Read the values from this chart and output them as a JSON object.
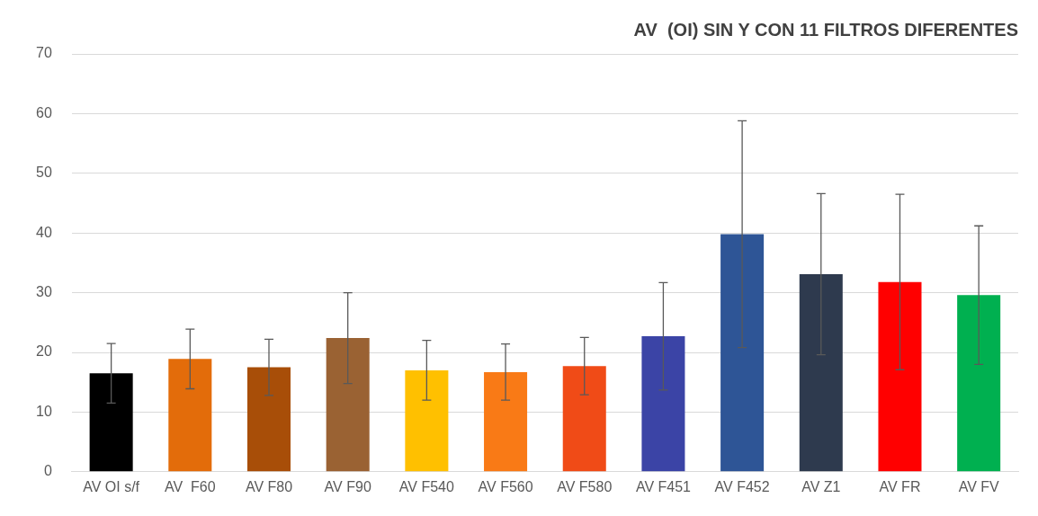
{
  "chart_data": {
    "type": "bar",
    "title": "AV  (OI) SIN Y CON 11 FILTROS DIFERENTES",
    "categories": [
      "AV OI s/f",
      "AV  F60",
      "AV F80",
      "AV F90",
      "AV F540",
      "AV F560",
      "AV F580",
      "AV F451",
      "AV F452",
      "AV Z1",
      "AV FR",
      "AV FV"
    ],
    "values": [
      16.5,
      18.9,
      17.5,
      22.4,
      17.0,
      16.7,
      17.7,
      22.7,
      39.8,
      33.1,
      31.8,
      29.6
    ],
    "colors": [
      "#000000",
      "#e36c0a",
      "#a84e08",
      "#9a6233",
      "#ffc000",
      "#f97a16",
      "#f04b17",
      "#3b44a6",
      "#2e5596",
      "#2e3a4e",
      "#ff0000",
      "#00b050"
    ],
    "errors": [
      5.0,
      5.0,
      4.7,
      7.6,
      5.0,
      4.7,
      4.8,
      9.0,
      19.0,
      13.5,
      14.7,
      11.6
    ],
    "ylim": [
      0,
      70
    ],
    "yticks": [
      0,
      10,
      20,
      30,
      40,
      50,
      60,
      70
    ],
    "grid": "y",
    "legend": false
  }
}
